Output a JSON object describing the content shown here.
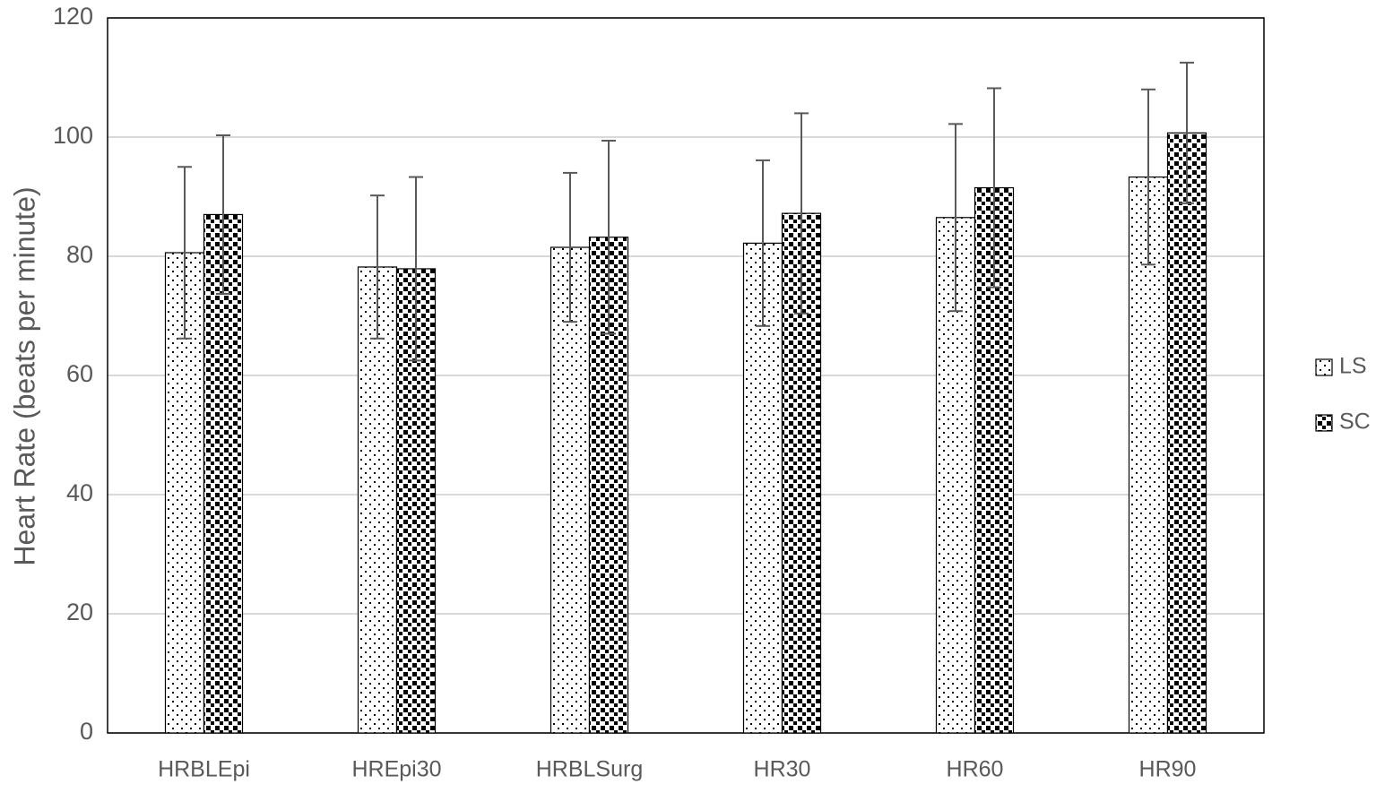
{
  "chart_data": {
    "type": "bar",
    "y_label": "Heart Rate (beats per minute)",
    "categories": [
      "HRBLEpi",
      "HREpi30",
      "HRBLSurg",
      "HR30",
      "HR60",
      "HR90"
    ],
    "series": [
      {
        "name": "LS",
        "pattern": "dots",
        "color": "#000000",
        "values": [
          80.6,
          78.2,
          81.5,
          82.2,
          86.5,
          93.3
        ],
        "errors": [
          14.4,
          12,
          12.5,
          13.9,
          15.7,
          14.7
        ]
      },
      {
        "name": "SC",
        "pattern": "checker",
        "color": "#000000",
        "values": [
          87,
          77.9,
          83.2,
          87.2,
          91.5,
          100.7
        ],
        "errors": [
          13.3,
          15.4,
          16.2,
          16.8,
          16.7,
          11.8
        ]
      }
    ],
    "ylim": [
      0,
      120
    ],
    "yticks": [
      0,
      20,
      40,
      60,
      80,
      100,
      120
    ],
    "grid": true,
    "legend": "right"
  }
}
